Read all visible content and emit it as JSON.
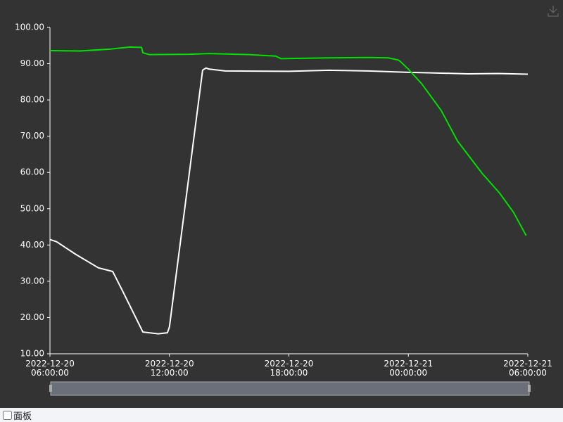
{
  "chart_data": {
    "type": "line",
    "xlim": [
      "2022-12-20 06:00:00",
      "2022-12-21 06:00:00"
    ],
    "xticks": [
      "2022-12-20 06:00:00",
      "2022-12-20 12:00:00",
      "2022-12-20 18:00:00",
      "2022-12-21 00:00:00",
      "2022-12-21 06:00:00"
    ],
    "ylim": [
      10,
      100
    ],
    "yticks": [
      {
        "value": 10,
        "label": "10.00"
      },
      {
        "value": 20,
        "label": "20.00"
      },
      {
        "value": 30,
        "label": "30.00"
      },
      {
        "value": 40,
        "label": "40.00"
      },
      {
        "value": 50,
        "label": "50.00"
      },
      {
        "value": 60,
        "label": "60.00"
      },
      {
        "value": 70,
        "label": "70.00"
      },
      {
        "value": 80,
        "label": "80.00"
      },
      {
        "value": 90,
        "label": "90.00"
      },
      {
        "value": 100,
        "label": "100.00"
      }
    ],
    "grid": false,
    "series": [
      {
        "color": "#ffffff",
        "x": [
          "2022-12-20 06:00",
          "2022-12-20 06:20",
          "2022-12-20 07:18",
          "2022-12-20 08:26",
          "2022-12-20 09:09",
          "2022-12-20 09:40",
          "2022-12-20 10:12",
          "2022-12-20 10:40",
          "2022-12-20 11:26",
          "2022-12-20 11:54",
          "2022-12-20 12:00",
          "2022-12-20 13:40",
          "2022-12-20 13:50",
          "2022-12-20 14:00",
          "2022-12-20 14:48",
          "2022-12-20 18:00",
          "2022-12-20 20:00",
          "2022-12-20 22:00",
          "2022-12-21 00:00",
          "2022-12-21 01:00",
          "2022-12-21 03:00",
          "2022-12-21 04:30",
          "2022-12-21 06:00"
        ],
        "values": [
          41.5,
          40.9,
          37.4,
          33.7,
          32.7,
          27.1,
          21.2,
          16.0,
          15.5,
          15.8,
          17.4,
          88.2,
          88.8,
          88.5,
          88.0,
          87.9,
          88.2,
          88.0,
          87.6,
          87.5,
          87.2,
          87.3,
          87.1
        ]
      },
      {
        "color": "#00e000",
        "x": [
          "2022-12-20 06:00",
          "2022-12-20 07:30",
          "2022-12-20 09:00",
          "2022-12-20 10:00",
          "2022-12-20 10:36",
          "2022-12-20 10:40",
          "2022-12-20 11:00",
          "2022-12-20 13:00",
          "2022-12-20 14:00",
          "2022-12-20 16:00",
          "2022-12-20 17:20",
          "2022-12-20 17:36",
          "2022-12-20 20:00",
          "2022-12-20 22:00",
          "2022-12-20 23:00",
          "2022-12-20 23:30",
          "2022-12-20 23:36",
          "2022-12-21 00:00",
          "2022-12-21 00:40",
          "2022-12-21 01:39",
          "2022-12-21 02:28",
          "2022-12-21 03:42",
          "2022-12-21 04:36",
          "2022-12-21 05:17",
          "2022-12-21 05:55"
        ],
        "values": [
          93.6,
          93.5,
          94.0,
          94.6,
          94.5,
          93.0,
          92.5,
          92.6,
          92.8,
          92.5,
          92.1,
          91.4,
          91.6,
          91.7,
          91.6,
          91.0,
          90.6,
          88.5,
          84.5,
          77.1,
          68.7,
          59.8,
          54.2,
          49.0,
          42.6
        ]
      }
    ]
  },
  "panel_label": "面板"
}
